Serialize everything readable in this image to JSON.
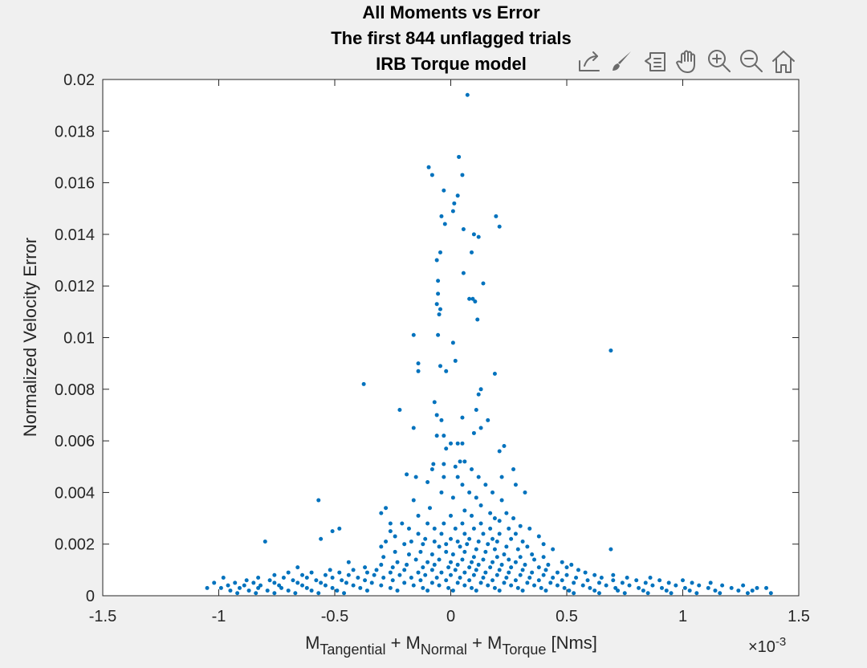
{
  "toolbar": {
    "icons": [
      "export-icon",
      "brush-icon",
      "data-tips-icon",
      "pan-icon",
      "zoom-in-icon",
      "zoom-out-icon",
      "home-icon"
    ]
  },
  "chart_data": {
    "type": "scatter",
    "title": [
      "All Moments vs Error",
      "The first 844 unflagged trials",
      "IRB Torque model"
    ],
    "ylabel": "Normalized Velocity Error",
    "xlabel": {
      "parts": [
        "M",
        "Tangential",
        " + M",
        "Normal",
        " + M",
        "Torque",
        " [Nms]"
      ]
    },
    "x_exponent": {
      "base": "×10",
      "power": "-3"
    },
    "xlim": [
      -1.5,
      1.5
    ],
    "ylim": [
      0,
      0.02
    ],
    "x_ticks": [
      -1.5,
      -1,
      -0.5,
      0,
      0.5,
      1,
      1.5
    ],
    "x_tick_labels": [
      "-1.5",
      "-1",
      "-0.5",
      "0",
      "0.5",
      "1",
      "1.5"
    ],
    "y_ticks": [
      0,
      0.002,
      0.004,
      0.006,
      0.008,
      0.01,
      0.012,
      0.014,
      0.016,
      0.018,
      0.02
    ],
    "y_tick_labels": [
      "0",
      "0.002",
      "0.004",
      "0.006",
      "0.008",
      "0.01",
      "0.012",
      "0.014",
      "0.016",
      "0.018",
      "0.02"
    ],
    "grid": false,
    "marker_color": "#0072bd",
    "points": [
      [
        0.072,
        0.0194
      ],
      [
        0.035,
        0.017
      ],
      [
        -0.095,
        0.0166
      ],
      [
        -0.08,
        0.0163
      ],
      [
        0.05,
        0.0163
      ],
      [
        -0.03,
        0.0157
      ],
      [
        0.03,
        0.0155
      ],
      [
        0.015,
        0.0152
      ],
      [
        -0.04,
        0.0147
      ],
      [
        -0.025,
        0.0144
      ],
      [
        0.01,
        0.0149
      ],
      [
        0.195,
        0.0147
      ],
      [
        0.21,
        0.0143
      ],
      [
        0.055,
        0.0142
      ],
      [
        0.1,
        0.014
      ],
      [
        0.12,
        0.0139
      ],
      [
        -0.045,
        0.0133
      ],
      [
        -0.06,
        0.013
      ],
      [
        0.09,
        0.0133
      ],
      [
        0.055,
        0.0125
      ],
      [
        -0.055,
        0.0122
      ],
      [
        0.14,
        0.0121
      ],
      [
        -0.055,
        0.0117
      ],
      [
        0.08,
        0.0115
      ],
      [
        0.095,
        0.0115
      ],
      [
        0.105,
        0.0114
      ],
      [
        -0.06,
        0.0113
      ],
      [
        -0.045,
        0.0111
      ],
      [
        -0.05,
        0.0109
      ],
      [
        0.115,
        0.0107
      ],
      [
        -0.16,
        0.0101
      ],
      [
        -0.055,
        0.0101
      ],
      [
        0.01,
        0.0098
      ],
      [
        -0.14,
        0.009
      ],
      [
        -0.14,
        0.0087
      ],
      [
        -0.045,
        0.0089
      ],
      [
        -0.02,
        0.0087
      ],
      [
        0.02,
        0.0091
      ],
      [
        0.19,
        0.0086
      ],
      [
        -0.375,
        0.0082
      ],
      [
        0.13,
        0.008
      ],
      [
        0.12,
        0.0078
      ],
      [
        -0.22,
        0.0072
      ],
      [
        -0.07,
        0.0075
      ],
      [
        0.11,
        0.0072
      ],
      [
        0.16,
        0.0068
      ],
      [
        -0.06,
        0.007
      ],
      [
        -0.04,
        0.0068
      ],
      [
        0.05,
        0.0069
      ],
      [
        -0.16,
        0.0065
      ],
      [
        -0.06,
        0.0062
      ],
      [
        -0.03,
        0.0062
      ],
      [
        0.1,
        0.0063
      ],
      [
        0.13,
        0.0065
      ],
      [
        0.03,
        0.0059
      ],
      [
        0.0,
        0.0059
      ],
      [
        0.05,
        0.0059
      ],
      [
        -0.02,
        0.0057
      ],
      [
        0.23,
        0.0058
      ],
      [
        0.21,
        0.0056
      ],
      [
        -0.075,
        0.0051
      ],
      [
        -0.03,
        0.0051
      ],
      [
        0.04,
        0.0052
      ],
      [
        0.06,
        0.0052
      ],
      [
        0.02,
        0.005
      ],
      [
        -0.08,
        0.0049
      ],
      [
        0.09,
        0.0049
      ],
      [
        0.27,
        0.0049
      ],
      [
        -0.19,
        0.0047
      ],
      [
        -0.15,
        0.0046
      ],
      [
        -0.03,
        0.0046
      ],
      [
        0.03,
        0.0046
      ],
      [
        0.12,
        0.0046
      ],
      [
        0.22,
        0.0046
      ],
      [
        0.28,
        0.0043
      ],
      [
        -0.1,
        0.0044
      ],
      [
        0.05,
        0.0043
      ],
      [
        0.15,
        0.0043
      ],
      [
        -0.04,
        0.004
      ],
      [
        0.08,
        0.004
      ],
      [
        0.18,
        0.004
      ],
      [
        0.32,
        0.004
      ],
      [
        -0.16,
        0.0037
      ],
      [
        0.01,
        0.0038
      ],
      [
        0.11,
        0.0038
      ],
      [
        0.22,
        0.0037
      ],
      [
        -0.57,
        0.0037
      ],
      [
        0.13,
        0.0035
      ],
      [
        -0.09,
        0.0034
      ],
      [
        0.06,
        0.0033
      ],
      [
        -0.28,
        0.0034
      ],
      [
        0.17,
        0.0032
      ],
      [
        0.24,
        0.0032
      ],
      [
        -0.3,
        0.0032
      ],
      [
        -0.14,
        0.0031
      ],
      [
        0.0,
        0.0031
      ],
      [
        0.09,
        0.0031
      ],
      [
        0.19,
        0.003
      ],
      [
        0.27,
        0.003
      ],
      [
        -0.26,
        0.0028
      ],
      [
        -0.21,
        0.0028
      ],
      [
        -0.1,
        0.0028
      ],
      [
        -0.03,
        0.0028
      ],
      [
        0.05,
        0.0028
      ],
      [
        0.13,
        0.0028
      ],
      [
        0.21,
        0.0029
      ],
      [
        0.3,
        0.0027
      ],
      [
        -0.18,
        0.0026
      ],
      [
        -0.07,
        0.0026
      ],
      [
        0.02,
        0.0026
      ],
      [
        0.1,
        0.0026
      ],
      [
        0.17,
        0.0026
      ],
      [
        0.25,
        0.0026
      ],
      [
        0.34,
        0.0026
      ],
      [
        -0.48,
        0.0026
      ],
      [
        -0.51,
        0.0025
      ],
      [
        -0.26,
        0.0025
      ],
      [
        -0.14,
        0.0024
      ],
      [
        -0.04,
        0.0024
      ],
      [
        0.06,
        0.0024
      ],
      [
        0.14,
        0.0024
      ],
      [
        0.21,
        0.0024
      ],
      [
        0.28,
        0.0024
      ],
      [
        0.38,
        0.0023
      ],
      [
        -0.24,
        0.0023
      ],
      [
        -0.11,
        0.0022
      ],
      [
        0.0,
        0.0022
      ],
      [
        0.08,
        0.0022
      ],
      [
        0.18,
        0.0022
      ],
      [
        0.26,
        0.0022
      ],
      [
        -0.56,
        0.0022
      ],
      [
        -0.28,
        0.0021
      ],
      [
        -0.17,
        0.0021
      ],
      [
        -0.07,
        0.0021
      ],
      [
        0.03,
        0.0021
      ],
      [
        0.12,
        0.0021
      ],
      [
        0.2,
        0.0021
      ],
      [
        0.31,
        0.0021
      ],
      [
        0.4,
        0.002
      ],
      [
        -0.8,
        0.0021
      ],
      [
        -0.2,
        0.002
      ],
      [
        -0.12,
        0.002
      ],
      [
        -0.02,
        0.002
      ],
      [
        0.07,
        0.002
      ],
      [
        0.16,
        0.002
      ],
      [
        0.24,
        0.0019
      ],
      [
        0.33,
        0.0019
      ],
      [
        0.44,
        0.0018
      ],
      [
        -0.3,
        0.0019
      ],
      [
        -0.05,
        0.0019
      ],
      [
        0.04,
        0.0019
      ],
      [
        0.11,
        0.0018
      ],
      [
        0.19,
        0.0018
      ],
      [
        0.29,
        0.0018
      ],
      [
        0.69,
        0.0018
      ],
      [
        -0.24,
        0.0017
      ],
      [
        -0.13,
        0.0017
      ],
      [
        -0.02,
        0.0017
      ],
      [
        0.06,
        0.0017
      ],
      [
        0.15,
        0.0017
      ],
      [
        0.23,
        0.0016
      ],
      [
        0.35,
        0.0016
      ],
      [
        -0.18,
        0.0016
      ],
      [
        -0.08,
        0.0016
      ],
      [
        0.01,
        0.0016
      ],
      [
        0.1,
        0.0015
      ],
      [
        0.2,
        0.0015
      ],
      [
        0.3,
        0.0015
      ],
      [
        0.4,
        0.0015
      ],
      [
        -0.29,
        0.0015
      ],
      [
        -0.15,
        0.0014
      ],
      [
        -0.05,
        0.0014
      ],
      [
        0.05,
        0.0014
      ],
      [
        0.14,
        0.0014
      ],
      [
        0.25,
        0.0014
      ],
      [
        0.36,
        0.0014
      ],
      [
        -0.23,
        0.0013
      ],
      [
        -0.1,
        0.0013
      ],
      [
        0.0,
        0.0013
      ],
      [
        0.09,
        0.0013
      ],
      [
        0.18,
        0.0013
      ],
      [
        0.28,
        0.0013
      ],
      [
        0.48,
        0.0013
      ],
      [
        -0.44,
        0.0013
      ],
      [
        -0.3,
        0.0012
      ],
      [
        -0.19,
        0.0012
      ],
      [
        -0.07,
        0.0012
      ],
      [
        0.03,
        0.0012
      ],
      [
        0.12,
        0.0012
      ],
      [
        0.22,
        0.0012
      ],
      [
        0.32,
        0.0012
      ],
      [
        0.42,
        0.0012
      ],
      [
        0.52,
        0.0012
      ],
      [
        -0.37,
        0.0011
      ],
      [
        -0.25,
        0.0011
      ],
      [
        -0.12,
        0.0011
      ],
      [
        -0.01,
        0.0011
      ],
      [
        0.08,
        0.0011
      ],
      [
        0.17,
        0.0011
      ],
      [
        0.26,
        0.0011
      ],
      [
        0.38,
        0.0011
      ],
      [
        0.5,
        0.0011
      ],
      [
        -0.66,
        0.0011
      ],
      [
        -0.52,
        0.001
      ],
      [
        -0.42,
        0.001
      ],
      [
        -0.32,
        0.001
      ],
      [
        -0.2,
        0.001
      ],
      [
        -0.08,
        0.001
      ],
      [
        0.02,
        0.001
      ],
      [
        0.11,
        0.001
      ],
      [
        0.21,
        0.001
      ],
      [
        0.31,
        0.001
      ],
      [
        0.41,
        0.001
      ],
      [
        0.55,
        0.001
      ],
      [
        -0.7,
        0.0009
      ],
      [
        -0.6,
        0.0009
      ],
      [
        -0.48,
        0.0009
      ],
      [
        -0.36,
        0.0009
      ],
      [
        -0.26,
        0.0009
      ],
      [
        -0.14,
        0.0009
      ],
      [
        -0.04,
        0.0009
      ],
      [
        0.06,
        0.0009
      ],
      [
        0.15,
        0.0009
      ],
      [
        0.25,
        0.0009
      ],
      [
        0.35,
        0.0009
      ],
      [
        0.46,
        0.0009
      ],
      [
        0.58,
        0.0009
      ],
      [
        -0.76,
        0.0008
      ],
      [
        -0.64,
        0.0008
      ],
      [
        -0.54,
        0.0008
      ],
      [
        -0.44,
        0.0008
      ],
      [
        -0.33,
        0.0008
      ],
      [
        -0.22,
        0.0008
      ],
      [
        -0.11,
        0.0008
      ],
      [
        0.0,
        0.0008
      ],
      [
        0.1,
        0.0008
      ],
      [
        0.2,
        0.0008
      ],
      [
        0.3,
        0.0008
      ],
      [
        0.4,
        0.0008
      ],
      [
        0.5,
        0.0008
      ],
      [
        0.62,
        0.0008
      ],
      [
        0.7,
        0.0008
      ],
      [
        -0.83,
        0.0007
      ],
      [
        -0.72,
        0.0007
      ],
      [
        -0.62,
        0.0007
      ],
      [
        -0.51,
        0.0007
      ],
      [
        -0.4,
        0.0007
      ],
      [
        -0.29,
        0.0007
      ],
      [
        -0.17,
        0.0007
      ],
      [
        -0.06,
        0.0007
      ],
      [
        0.04,
        0.0007
      ],
      [
        0.14,
        0.0007
      ],
      [
        0.24,
        0.0007
      ],
      [
        0.34,
        0.0007
      ],
      [
        0.44,
        0.0007
      ],
      [
        0.54,
        0.0007
      ],
      [
        0.65,
        0.0007
      ],
      [
        0.76,
        0.0007
      ],
      [
        0.86,
        0.0007
      ],
      [
        -0.98,
        0.0007
      ],
      [
        -0.88,
        0.0006
      ],
      [
        -0.78,
        0.0006
      ],
      [
        -0.68,
        0.0006
      ],
      [
        -0.58,
        0.0006
      ],
      [
        -0.47,
        0.0006
      ],
      [
        -0.37,
        0.0006
      ],
      [
        -0.25,
        0.0006
      ],
      [
        -0.13,
        0.0006
      ],
      [
        -0.02,
        0.0006
      ],
      [
        0.08,
        0.0006
      ],
      [
        0.18,
        0.0006
      ],
      [
        0.28,
        0.0006
      ],
      [
        0.38,
        0.0006
      ],
      [
        0.48,
        0.0006
      ],
      [
        0.59,
        0.0006
      ],
      [
        0.7,
        0.0006
      ],
      [
        0.8,
        0.0006
      ],
      [
        0.9,
        0.0006
      ],
      [
        1.0,
        0.0006
      ],
      [
        -1.02,
        0.0005
      ],
      [
        -0.93,
        0.0005
      ],
      [
        -0.85,
        0.0005
      ],
      [
        -0.76,
        0.0005
      ],
      [
        -0.66,
        0.0005
      ],
      [
        -0.56,
        0.0005
      ],
      [
        -0.45,
        0.0005
      ],
      [
        -0.34,
        0.0005
      ],
      [
        -0.2,
        0.0005
      ],
      [
        -0.08,
        0.0005
      ],
      [
        0.03,
        0.0005
      ],
      [
        0.13,
        0.0005
      ],
      [
        0.23,
        0.0005
      ],
      [
        0.33,
        0.0005
      ],
      [
        0.43,
        0.0005
      ],
      [
        0.53,
        0.0005
      ],
      [
        0.64,
        0.0005
      ],
      [
        0.74,
        0.0005
      ],
      [
        0.84,
        0.0005
      ],
      [
        0.94,
        0.0005
      ],
      [
        1.04,
        0.0005
      ],
      [
        1.12,
        0.0005
      ],
      [
        -0.96,
        0.0004
      ],
      [
        -0.89,
        0.0004
      ],
      [
        -0.82,
        0.0004
      ],
      [
        -0.74,
        0.0004
      ],
      [
        -0.64,
        0.0004
      ],
      [
        -0.54,
        0.0004
      ],
      [
        -0.42,
        0.0004
      ],
      [
        -0.3,
        0.0004
      ],
      [
        -0.16,
        0.0004
      ],
      [
        -0.05,
        0.0004
      ],
      [
        0.06,
        0.0004
      ],
      [
        0.16,
        0.0004
      ],
      [
        0.26,
        0.0004
      ],
      [
        0.36,
        0.0004
      ],
      [
        0.46,
        0.0004
      ],
      [
        0.57,
        0.0004
      ],
      [
        0.67,
        0.0004
      ],
      [
        0.77,
        0.0004
      ],
      [
        0.87,
        0.0004
      ],
      [
        0.97,
        0.0004
      ],
      [
        1.07,
        0.0004
      ],
      [
        1.17,
        0.0004
      ],
      [
        1.26,
        0.0004
      ],
      [
        -1.05,
        0.0003
      ],
      [
        -0.99,
        0.0003
      ],
      [
        -0.91,
        0.0003
      ],
      [
        -0.83,
        0.0003
      ],
      [
        -0.73,
        0.0003
      ],
      [
        -0.62,
        0.0003
      ],
      [
        -0.51,
        0.0003
      ],
      [
        -0.39,
        0.0003
      ],
      [
        -0.26,
        0.0003
      ],
      [
        -0.12,
        0.0003
      ],
      [
        -0.01,
        0.0003
      ],
      [
        0.09,
        0.0003
      ],
      [
        0.19,
        0.0003
      ],
      [
        0.29,
        0.0003
      ],
      [
        0.39,
        0.0003
      ],
      [
        0.49,
        0.0003
      ],
      [
        0.6,
        0.0003
      ],
      [
        0.71,
        0.0003
      ],
      [
        0.81,
        0.0003
      ],
      [
        0.91,
        0.0003
      ],
      [
        1.01,
        0.0003
      ],
      [
        1.11,
        0.0003
      ],
      [
        1.21,
        0.0003
      ],
      [
        1.32,
        0.0003
      ],
      [
        1.36,
        0.0003
      ],
      [
        -0.95,
        0.0002
      ],
      [
        -0.87,
        0.0002
      ],
      [
        -0.79,
        0.0002
      ],
      [
        -0.7,
        0.0002
      ],
      [
        -0.6,
        0.0002
      ],
      [
        -0.49,
        0.0002
      ],
      [
        -0.36,
        0.0002
      ],
      [
        -0.23,
        0.0002
      ],
      [
        -0.1,
        0.0002
      ],
      [
        0.01,
        0.0002
      ],
      [
        0.11,
        0.0002
      ],
      [
        0.21,
        0.0002
      ],
      [
        0.31,
        0.0002
      ],
      [
        0.41,
        0.0002
      ],
      [
        0.51,
        0.0002
      ],
      [
        0.62,
        0.0002
      ],
      [
        0.72,
        0.0002
      ],
      [
        0.83,
        0.0002
      ],
      [
        0.93,
        0.0002
      ],
      [
        1.03,
        0.0002
      ],
      [
        1.14,
        0.0002
      ],
      [
        1.24,
        0.0002
      ],
      [
        1.3,
        0.0002
      ],
      [
        -0.92,
        0.0001
      ],
      [
        -0.84,
        0.0001
      ],
      [
        -0.76,
        0.0001
      ],
      [
        -0.67,
        0.0001
      ],
      [
        -0.57,
        0.0001
      ],
      [
        -0.46,
        0.0001
      ],
      [
        0.53,
        0.0001
      ],
      [
        0.64,
        0.0001
      ],
      [
        0.75,
        0.0001
      ],
      [
        0.85,
        0.0001
      ],
      [
        0.95,
        0.0001
      ],
      [
        1.06,
        0.0001
      ],
      [
        1.16,
        0.0001
      ],
      [
        1.28,
        0.0001
      ],
      [
        1.38,
        0.0001
      ],
      [
        0.69,
        0.0095
      ]
    ]
  }
}
